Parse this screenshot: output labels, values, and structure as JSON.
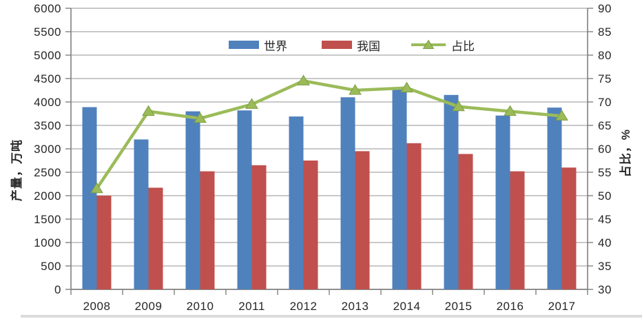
{
  "chart_data": {
    "type": "bar",
    "subtype": "combo-bar-line",
    "title": "",
    "categories": [
      "2008",
      "2009",
      "2010",
      "2011",
      "2012",
      "2013",
      "2014",
      "2015",
      "2016",
      "2017"
    ],
    "series": [
      {
        "name": "世界",
        "type": "bar",
        "axis": "left",
        "color": "#4f81bd",
        "values": [
          3890,
          3200,
          3800,
          3820,
          3690,
          4100,
          4270,
          4150,
          3710,
          3880
        ]
      },
      {
        "name": "我国",
        "type": "bar",
        "axis": "left",
        "color": "#c0504d",
        "values": [
          2000,
          2170,
          2520,
          2650,
          2750,
          2950,
          3120,
          2890,
          2520,
          2600
        ]
      },
      {
        "name": "占比",
        "type": "line",
        "axis": "right",
        "color": "#9bbb59",
        "marker": "triangle",
        "values": [
          51.5,
          68,
          66.5,
          69.5,
          74.5,
          72.5,
          73,
          69,
          68,
          67
        ]
      }
    ],
    "left_axis": {
      "label": "产量，万吨",
      "min": 0,
      "max": 6000,
      "step": 500,
      "ticks": [
        "0",
        "500",
        "1000",
        "1500",
        "2000",
        "2500",
        "3000",
        "3500",
        "4000",
        "4500",
        "5000",
        "5500",
        "6000"
      ]
    },
    "right_axis": {
      "label": "占比，%",
      "min": 30,
      "max": 90,
      "step": 5,
      "ticks": [
        "30",
        "35",
        "40",
        "45",
        "50",
        "55",
        "60",
        "65",
        "70",
        "75",
        "80",
        "85",
        "90"
      ]
    },
    "grid": true,
    "legend_position": "top-center",
    "colors": {
      "gridline": "#a6a6a6",
      "axis": "#7f7f7f",
      "tick_text": "#262626",
      "line_marker_edge": "#7e9c46"
    }
  }
}
